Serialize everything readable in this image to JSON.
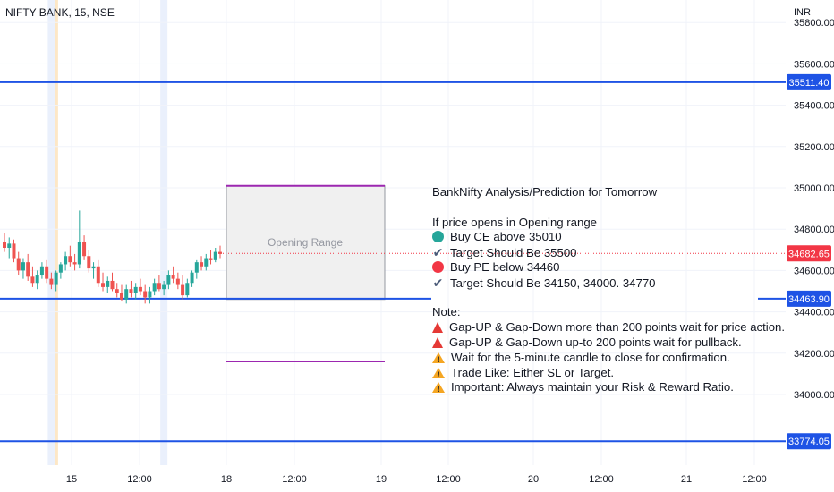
{
  "header": {
    "symbol": "NIFTY BANK, 15, NSE",
    "currency": "INR"
  },
  "chart_data": {
    "type": "candlestick",
    "price_axis": {
      "range": [
        33650,
        35900
      ],
      "ticks": [
        34000,
        34200,
        34400,
        34600,
        34800,
        35000,
        35200,
        35400,
        35600,
        35800
      ],
      "tick_labels": [
        "34000.00",
        "34200.00",
        "34400.00",
        "34600.00",
        "34800.00",
        "35000.00",
        "35200.00",
        "35400.00",
        "35600.00",
        "35800.00"
      ]
    },
    "time_axis": {
      "labels": [
        "15",
        "12:00",
        "18",
        "12:00",
        "19",
        "12:00",
        "20",
        "12:00",
        "21",
        "12:00"
      ]
    },
    "candles": [
      {
        "o": 34740,
        "h": 34780,
        "l": 34690,
        "c": 34710
      },
      {
        "o": 34710,
        "h": 34760,
        "l": 34660,
        "c": 34730
      },
      {
        "o": 34730,
        "h": 34750,
        "l": 34640,
        "c": 34660
      },
      {
        "o": 34660,
        "h": 34690,
        "l": 34580,
        "c": 34600
      },
      {
        "o": 34600,
        "h": 34660,
        "l": 34560,
        "c": 34640
      },
      {
        "o": 34640,
        "h": 34680,
        "l": 34550,
        "c": 34570
      },
      {
        "o": 34570,
        "h": 34620,
        "l": 34520,
        "c": 34540
      },
      {
        "o": 34540,
        "h": 34600,
        "l": 34510,
        "c": 34580
      },
      {
        "o": 34580,
        "h": 34640,
        "l": 34560,
        "c": 34620
      },
      {
        "o": 34620,
        "h": 34650,
        "l": 34540,
        "c": 34560
      },
      {
        "o": 34560,
        "h": 34590,
        "l": 34510,
        "c": 34530
      },
      {
        "o": 34530,
        "h": 34600,
        "l": 34500,
        "c": 34590
      },
      {
        "o": 34590,
        "h": 34640,
        "l": 34560,
        "c": 34630
      },
      {
        "o": 34630,
        "h": 34690,
        "l": 34600,
        "c": 34670
      },
      {
        "o": 34670,
        "h": 34720,
        "l": 34620,
        "c": 34640
      },
      {
        "o": 34640,
        "h": 34680,
        "l": 34600,
        "c": 34630
      },
      {
        "o": 34630,
        "h": 34890,
        "l": 34610,
        "c": 34740
      },
      {
        "o": 34740,
        "h": 34770,
        "l": 34650,
        "c": 34670
      },
      {
        "o": 34670,
        "h": 34700,
        "l": 34590,
        "c": 34610
      },
      {
        "o": 34610,
        "h": 34640,
        "l": 34560,
        "c": 34620
      },
      {
        "o": 34620,
        "h": 34650,
        "l": 34520,
        "c": 34540
      },
      {
        "o": 34540,
        "h": 34590,
        "l": 34500,
        "c": 34520
      },
      {
        "o": 34520,
        "h": 34570,
        "l": 34490,
        "c": 34550
      },
      {
        "o": 34550,
        "h": 34590,
        "l": 34500,
        "c": 34510
      },
      {
        "o": 34510,
        "h": 34540,
        "l": 34470,
        "c": 34490
      },
      {
        "o": 34490,
        "h": 34530,
        "l": 34450,
        "c": 34460
      },
      {
        "o": 34460,
        "h": 34530,
        "l": 34440,
        "c": 34510
      },
      {
        "o": 34510,
        "h": 34550,
        "l": 34470,
        "c": 34490
      },
      {
        "o": 34490,
        "h": 34540,
        "l": 34460,
        "c": 34520
      },
      {
        "o": 34520,
        "h": 34560,
        "l": 34480,
        "c": 34500
      },
      {
        "o": 34500,
        "h": 34530,
        "l": 34440,
        "c": 34470
      },
      {
        "o": 34470,
        "h": 34520,
        "l": 34440,
        "c": 34500
      },
      {
        "o": 34500,
        "h": 34560,
        "l": 34480,
        "c": 34540
      },
      {
        "o": 34540,
        "h": 34580,
        "l": 34500,
        "c": 34510
      },
      {
        "o": 34510,
        "h": 34550,
        "l": 34480,
        "c": 34530
      },
      {
        "o": 34530,
        "h": 34600,
        "l": 34510,
        "c": 34580
      },
      {
        "o": 34580,
        "h": 34620,
        "l": 34540,
        "c": 34560
      },
      {
        "o": 34560,
        "h": 34590,
        "l": 34510,
        "c": 34530
      },
      {
        "o": 34530,
        "h": 34580,
        "l": 34460,
        "c": 34480
      },
      {
        "o": 34480,
        "h": 34560,
        "l": 34470,
        "c": 34540
      },
      {
        "o": 34540,
        "h": 34600,
        "l": 34520,
        "c": 34590
      },
      {
        "o": 34590,
        "h": 34650,
        "l": 34560,
        "c": 34640
      },
      {
        "o": 34640,
        "h": 34670,
        "l": 34600,
        "c": 34620
      },
      {
        "o": 34620,
        "h": 34680,
        "l": 34600,
        "c": 34660
      },
      {
        "o": 34660,
        "h": 34700,
        "l": 34630,
        "c": 34650
      },
      {
        "o": 34650,
        "h": 34710,
        "l": 34640,
        "c": 34690
      },
      {
        "o": 34690,
        "h": 34720,
        "l": 34660,
        "c": 34680
      }
    ],
    "horizontal_lines": [
      {
        "price": 35511.4,
        "label": "35511.40",
        "color": "#1e53e5"
      },
      {
        "price": 34463.9,
        "label": "34463.90",
        "color": "#1e53e5"
      },
      {
        "price": 33774.05,
        "label": "33774.05",
        "color": "#1e53e5"
      }
    ],
    "last_price": {
      "price": 34682.65,
      "label": "34682.65",
      "color": "#f23645"
    },
    "opening_range": {
      "high": 35010,
      "low": 34460,
      "label": "Opening Range"
    },
    "range_lines": {
      "upper": 35010,
      "lower": 34160,
      "color": "#9c27b0"
    },
    "highlight_bars": [
      10,
      34
    ],
    "colors": {
      "up": "#26a69a",
      "down": "#ef5350",
      "range_fill": "#f0f0f0",
      "range_border": "#9598a1"
    }
  },
  "note": {
    "title": "BankNifty Analysis/Prediction for Tomorrow",
    "condition": "If price opens in Opening range",
    "items": [
      {
        "icon": "green-circle-icon",
        "text": "Buy CE above 35010"
      },
      {
        "icon": "check-icon",
        "text": "Target Should Be 35500"
      },
      {
        "icon": "red-circle-icon",
        "text": "Buy PE below 34460"
      },
      {
        "icon": "check-icon",
        "text": "Target Should Be 34150, 34000. 34770"
      }
    ],
    "note_label": "Note:",
    "notes": [
      {
        "icon": "traffic-cone-icon",
        "text": "Gap-UP & Gap-Down more than 200 points wait for price action."
      },
      {
        "icon": "traffic-cone-icon",
        "text": "Gap-UP & Gap-Down up-to 200 points wait for pullback."
      },
      {
        "icon": "warning-icon",
        "text": "Wait for the 5-minute candle to close for confirmation."
      },
      {
        "icon": "warning-icon",
        "text": "Trade Like: Either SL or Target."
      },
      {
        "icon": "warning-icon",
        "text": "Important: Always maintain your Risk & Reward Ratio."
      }
    ]
  }
}
